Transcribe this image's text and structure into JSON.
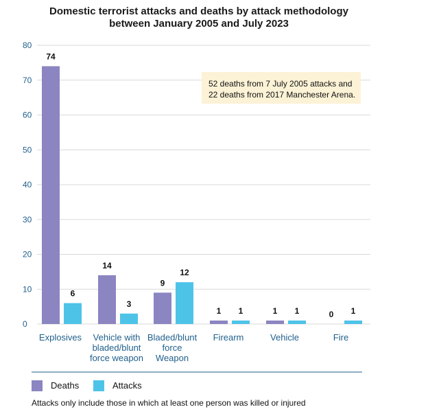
{
  "chart_data": {
    "type": "bar",
    "title": "Domestic terrorist attacks and deaths by attack methodology between January 2005 and July 2023",
    "title_lines": [
      "Domestic terrorist attacks and deaths by attack methodology",
      "between January 2005 and July 2023"
    ],
    "categories": [
      "Explosives",
      "Vehicle with bladed/blunt force weapon",
      "Bladed/blunt force Weapon",
      "Firearm",
      "Vehicle",
      "Fire"
    ],
    "category_lines": [
      [
        "Explosives"
      ],
      [
        "Vehicle with",
        "bladed/blunt",
        "force weapon"
      ],
      [
        "Bladed/blunt",
        "force",
        "Weapon"
      ],
      [
        "Firearm"
      ],
      [
        "Vehicle"
      ],
      [
        "Fire"
      ]
    ],
    "series": [
      {
        "name": "Deaths",
        "values": [
          74,
          14,
          9,
          1,
          1,
          0
        ],
        "color": "#8b85c1"
      },
      {
        "name": "Attacks",
        "values": [
          6,
          3,
          12,
          1,
          1,
          1
        ],
        "color": "#4ec3e8"
      }
    ],
    "ylim": [
      0,
      80
    ],
    "yticks": [
      0,
      10,
      20,
      30,
      40,
      50,
      60,
      70,
      80
    ],
    "grid": true,
    "legend_position": "bottom-left",
    "annotation": [
      "52 deaths from 7 July 2005 attacks and",
      "22 deaths from 2017 Manchester Arena."
    ],
    "footnote": "Attacks only include those in which at least one person was killed or injured"
  }
}
